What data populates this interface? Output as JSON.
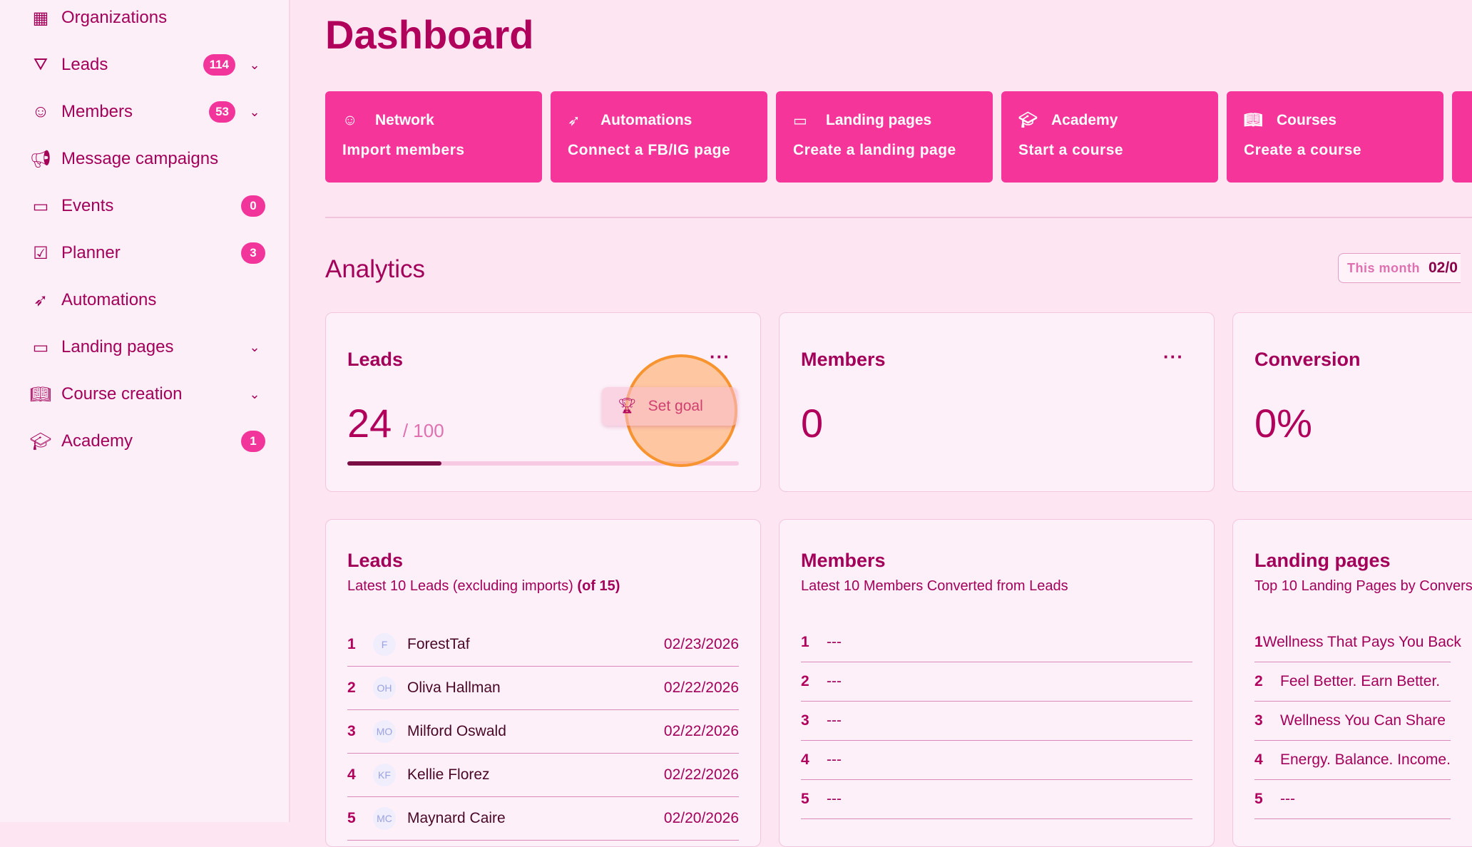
{
  "sidebar": {
    "items": [
      {
        "label": "Organizations",
        "icon": "building-icon"
      },
      {
        "label": "Leads",
        "icon": "funnel-icon",
        "badge": "114",
        "expandable": true
      },
      {
        "label": "Members",
        "icon": "people-icon",
        "badge": "53",
        "expandable": true
      },
      {
        "label": "Message campaigns",
        "icon": "megaphone-icon"
      },
      {
        "label": "Events",
        "icon": "calendar-icon",
        "badge": "0"
      },
      {
        "label": "Planner",
        "icon": "clipboard-check-icon",
        "badge": "3"
      },
      {
        "label": "Automations",
        "icon": "rocket-icon"
      },
      {
        "label": "Landing pages",
        "icon": "monitor-icon",
        "expandable": true
      },
      {
        "label": "Course creation",
        "icon": "book-icon",
        "expandable": true
      },
      {
        "label": "Academy",
        "icon": "graduation-cap-icon",
        "badge": "1"
      }
    ]
  },
  "page_title": "Dashboard",
  "quick_actions": [
    {
      "title": "Network",
      "action": "Import members",
      "icon": "people-icon"
    },
    {
      "title": "Automations",
      "action": "Connect a FB/IG page",
      "icon": "rocket-icon"
    },
    {
      "title": "Landing pages",
      "action": "Create a landing page",
      "icon": "monitor-icon"
    },
    {
      "title": "Academy",
      "action": "Start a course",
      "icon": "graduation-cap-icon"
    },
    {
      "title": "Courses",
      "action": "Create a course",
      "icon": "book-icon"
    }
  ],
  "analytics": {
    "title": "Analytics",
    "period_label": "This month",
    "period_value": "02/0"
  },
  "stats": {
    "leads": {
      "title": "Leads",
      "value": "24",
      "goal": "/ 100",
      "progress_percent": 24,
      "set_goal_label": "Set goal"
    },
    "members": {
      "title": "Members",
      "value": "0"
    },
    "conversion": {
      "title": "Conversion",
      "value": "0%"
    }
  },
  "lists": {
    "leads": {
      "title": "Leads",
      "subtitle": "Latest 10 Leads (excluding imports)",
      "subtitle_count": "(of 15)",
      "rows": [
        {
          "n": "1",
          "initials": "F",
          "name": "ForestTaf",
          "date": "02/23/2026"
        },
        {
          "n": "2",
          "initials": "OH",
          "name": "Oliva Hallman",
          "date": "02/22/2026"
        },
        {
          "n": "3",
          "initials": "MO",
          "name": "Milford Oswald",
          "date": "02/22/2026"
        },
        {
          "n": "4",
          "initials": "KF",
          "name": "Kellie Florez",
          "date": "02/22/2026"
        },
        {
          "n": "5",
          "initials": "MC",
          "name": "Maynard Caire",
          "date": "02/20/2026"
        }
      ]
    },
    "members": {
      "title": "Members",
      "subtitle": "Latest 10 Members Converted from Leads",
      "rows": [
        {
          "n": "1",
          "name": "---"
        },
        {
          "n": "2",
          "name": "---"
        },
        {
          "n": "3",
          "name": "---"
        },
        {
          "n": "4",
          "name": "---"
        },
        {
          "n": "5",
          "name": "---"
        }
      ]
    },
    "landing": {
      "title": "Landing pages",
      "subtitle": "Top 10 Landing Pages by Convers",
      "rows": [
        {
          "n": "1",
          "name": "Wellness That Pays You Back"
        },
        {
          "n": "2",
          "name": "Feel Better. Earn Better."
        },
        {
          "n": "3",
          "name": "Wellness You Can Share"
        },
        {
          "n": "4",
          "name": "Energy. Balance. Income."
        },
        {
          "n": "5",
          "name": "---"
        }
      ]
    }
  },
  "colors": {
    "accent": "#f5359a",
    "text": "#b0005c",
    "background": "#fde6f2",
    "progress": "#7a0f45"
  }
}
